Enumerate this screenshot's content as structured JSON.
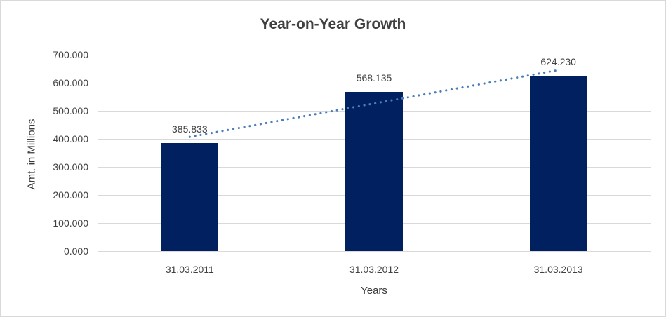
{
  "page": {
    "background": "#ffffff",
    "border_color": "#d9d9d9"
  },
  "chart_data": {
    "type": "bar",
    "title": "Year-on-Year Growth",
    "xlabel": "Years",
    "ylabel": "Amt. in Millions",
    "categories": [
      "31.03.2011",
      "31.03.2012",
      "31.03.2013"
    ],
    "values": [
      385.833,
      568.135,
      624.23
    ],
    "data_labels": [
      "385.833",
      "568.135",
      "624.230"
    ],
    "ylim": [
      0,
      700
    ],
    "yticks": [
      0,
      100,
      200,
      300,
      400,
      500,
      600,
      700
    ],
    "ytick_labels": [
      "0.000",
      "100.000",
      "200.000",
      "300.000",
      "400.000",
      "500.000",
      "600.000",
      "700.000"
    ],
    "grid": true,
    "legend": "none",
    "bar_color": "#002060",
    "text_color": "#404040",
    "gridline_color": "#d9d9d9",
    "axis_line_color": "#d9d9d9",
    "trendline": {
      "type": "linear",
      "style": "dotted",
      "color": "#4a7ebb",
      "start_value": 406.9,
      "end_value": 645.3
    }
  }
}
